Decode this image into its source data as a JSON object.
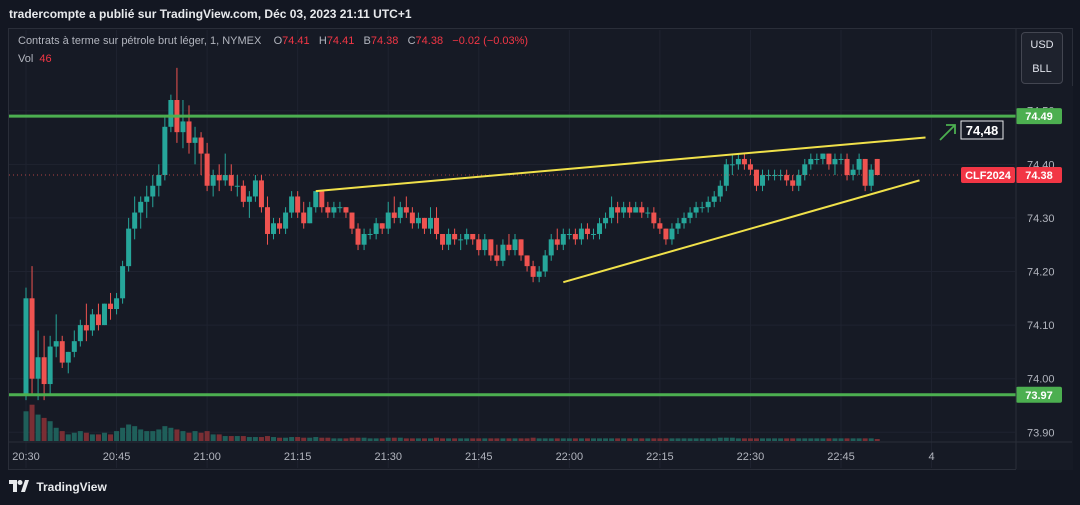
{
  "header": {
    "publisher": "tradercompte a publié sur TradingView.com, Déc 03, 2023 21:11 UTC+1"
  },
  "legend": {
    "symbol": "Contrats à terme sur pétrole brut léger, 1, NYMEX",
    "o_label": "O",
    "o_value": "74.41",
    "h_label": "H",
    "h_value": "74.41",
    "b_label": "B",
    "b_value": "74.38",
    "c_label": "C",
    "c_value": "74.38",
    "change": "−0.02 (−0.03%)",
    "vol_label": "Vol",
    "vol_value": "46"
  },
  "currency": {
    "usd": "USD",
    "unit": "BLL"
  },
  "footer": {
    "brand": "TradingView"
  },
  "colors": {
    "up": "#26a69a",
    "down": "#ef5350",
    "hline": "#4caf50",
    "trend": "#f0e14a",
    "bg": "#161a25"
  },
  "chart_data": {
    "type": "candlestick",
    "x_ticks": [
      "20:30",
      "20:45",
      "21:00",
      "21:15",
      "21:30",
      "21:45",
      "22:00",
      "22:15",
      "22:30",
      "22:45",
      "4"
    ],
    "y_ticks": [
      "73.90",
      "74.00",
      "74.10",
      "74.20",
      "74.30",
      "74.40",
      "74.50"
    ],
    "ylim": [
      73.88,
      74.52
    ],
    "horizontal_levels": [
      {
        "price": 74.49,
        "label": "74.49"
      },
      {
        "price": 73.97,
        "label": "73.97"
      }
    ],
    "current_price": {
      "price": 74.38,
      "label": "74.38",
      "ticker": "CLF2024"
    },
    "annotation": "74,48",
    "trendlines": [
      {
        "from": {
          "time": "21:18",
          "price": 74.35
        },
        "to": {
          "time": "22:59",
          "price": 74.45
        }
      },
      {
        "from": {
          "time": "21:59",
          "price": 74.18
        },
        "to": {
          "time": "22:58",
          "price": 74.37
        }
      }
    ],
    "candles": [
      [
        73.97,
        74.17,
        73.96,
        74.15,
        90
      ],
      [
        74.15,
        74.21,
        73.97,
        74.0,
        110
      ],
      [
        74.0,
        74.09,
        73.96,
        74.04,
        80
      ],
      [
        74.04,
        74.08,
        73.96,
        73.99,
        70
      ],
      [
        73.99,
        74.08,
        73.97,
        74.06,
        60
      ],
      [
        74.06,
        74.12,
        74.04,
        74.07,
        40
      ],
      [
        74.07,
        74.08,
        74.02,
        74.03,
        30
      ],
      [
        74.03,
        74.05,
        74.01,
        74.05,
        20
      ],
      [
        74.05,
        74.09,
        74.04,
        74.07,
        25
      ],
      [
        74.07,
        74.11,
        74.06,
        74.1,
        30
      ],
      [
        74.1,
        74.14,
        74.07,
        74.09,
        25
      ],
      [
        74.09,
        74.13,
        74.08,
        74.12,
        20
      ],
      [
        74.12,
        74.14,
        74.09,
        74.1,
        20
      ],
      [
        74.1,
        74.14,
        74.1,
        74.14,
        25
      ],
      [
        74.14,
        74.16,
        74.11,
        74.13,
        20
      ],
      [
        74.13,
        74.16,
        74.12,
        74.15,
        30
      ],
      [
        74.15,
        74.22,
        74.14,
        74.21,
        40
      ],
      [
        74.21,
        74.3,
        74.2,
        74.28,
        50
      ],
      [
        74.28,
        74.34,
        74.26,
        74.31,
        45
      ],
      [
        74.31,
        74.34,
        74.28,
        74.33,
        35
      ],
      [
        74.33,
        74.36,
        74.3,
        74.34,
        30
      ],
      [
        74.34,
        74.38,
        74.32,
        74.36,
        30
      ],
      [
        74.36,
        74.4,
        74.34,
        74.38,
        35
      ],
      [
        74.38,
        74.49,
        74.37,
        74.47,
        45
      ],
      [
        74.47,
        74.53,
        74.46,
        74.52,
        40
      ],
      [
        74.52,
        74.58,
        74.44,
        74.46,
        35
      ],
      [
        74.46,
        74.52,
        74.43,
        74.48,
        30
      ],
      [
        74.48,
        74.51,
        74.42,
        74.44,
        25
      ],
      [
        74.44,
        74.47,
        74.4,
        74.45,
        30
      ],
      [
        74.45,
        74.46,
        74.38,
        74.42,
        25
      ],
      [
        74.42,
        74.44,
        74.35,
        74.36,
        30
      ],
      [
        74.36,
        74.39,
        74.34,
        74.38,
        20
      ],
      [
        74.38,
        74.4,
        74.35,
        74.37,
        20
      ],
      [
        74.37,
        74.42,
        74.36,
        74.38,
        15
      ],
      [
        74.38,
        74.4,
        74.35,
        74.36,
        15
      ],
      [
        74.36,
        74.38,
        74.34,
        74.36,
        15
      ],
      [
        74.36,
        74.37,
        74.32,
        74.33,
        15
      ],
      [
        74.33,
        74.35,
        74.3,
        74.34,
        12
      ],
      [
        74.34,
        74.38,
        74.33,
        74.37,
        12
      ],
      [
        74.37,
        74.38,
        74.31,
        74.32,
        12
      ],
      [
        74.32,
        74.34,
        74.25,
        74.27,
        15
      ],
      [
        74.27,
        74.3,
        74.26,
        74.29,
        12
      ],
      [
        74.29,
        74.3,
        74.27,
        74.28,
        10
      ],
      [
        74.28,
        74.32,
        74.27,
        74.31,
        10
      ],
      [
        74.31,
        74.35,
        74.3,
        74.34,
        12
      ],
      [
        74.34,
        74.35,
        74.3,
        74.31,
        12
      ],
      [
        74.31,
        74.33,
        74.28,
        74.29,
        10
      ],
      [
        74.29,
        74.33,
        74.29,
        74.32,
        10
      ],
      [
        74.32,
        74.35,
        74.31,
        74.35,
        12
      ],
      [
        74.35,
        74.35,
        74.31,
        74.32,
        10
      ],
      [
        74.32,
        74.33,
        74.3,
        74.31,
        10
      ],
      [
        74.31,
        74.33,
        74.3,
        74.32,
        8
      ],
      [
        74.32,
        74.33,
        74.31,
        74.32,
        8
      ],
      [
        74.32,
        74.32,
        74.3,
        74.31,
        8
      ],
      [
        74.31,
        74.31,
        74.27,
        74.28,
        10
      ],
      [
        74.28,
        74.29,
        74.24,
        74.25,
        10
      ],
      [
        74.25,
        74.28,
        74.24,
        74.27,
        10
      ],
      [
        74.27,
        74.28,
        74.26,
        74.27,
        8
      ],
      [
        74.27,
        74.3,
        74.26,
        74.29,
        8
      ],
      [
        74.29,
        74.29,
        74.27,
        74.28,
        8
      ],
      [
        74.28,
        74.33,
        74.27,
        74.31,
        10
      ],
      [
        74.31,
        74.34,
        74.29,
        74.3,
        10
      ],
      [
        74.3,
        74.33,
        74.29,
        74.32,
        10
      ],
      [
        74.32,
        74.34,
        74.3,
        74.31,
        8
      ],
      [
        74.31,
        74.32,
        74.28,
        74.29,
        8
      ],
      [
        74.29,
        74.31,
        74.28,
        74.3,
        8
      ],
      [
        74.3,
        74.3,
        74.27,
        74.28,
        8
      ],
      [
        74.28,
        74.32,
        74.27,
        74.3,
        8
      ],
      [
        74.3,
        74.32,
        74.26,
        74.27,
        10
      ],
      [
        74.27,
        74.27,
        74.24,
        74.25,
        8
      ],
      [
        74.25,
        74.28,
        74.24,
        74.27,
        8
      ],
      [
        74.27,
        74.28,
        74.25,
        74.26,
        8
      ],
      [
        74.26,
        74.27,
        74.24,
        74.26,
        8
      ],
      [
        74.26,
        74.28,
        74.25,
        74.27,
        8
      ],
      [
        74.27,
        74.27,
        74.25,
        74.26,
        8
      ],
      [
        74.26,
        74.27,
        74.23,
        74.24,
        8
      ],
      [
        74.24,
        74.27,
        74.23,
        74.26,
        8
      ],
      [
        74.26,
        74.26,
        74.22,
        74.23,
        8
      ],
      [
        74.23,
        74.25,
        74.21,
        74.22,
        8
      ],
      [
        74.22,
        74.26,
        74.21,
        74.25,
        8
      ],
      [
        74.25,
        74.27,
        74.23,
        74.24,
        8
      ],
      [
        74.24,
        74.27,
        74.23,
        74.26,
        8
      ],
      [
        74.26,
        74.26,
        74.22,
        74.23,
        8
      ],
      [
        74.23,
        74.23,
        74.2,
        74.21,
        8
      ],
      [
        74.21,
        74.22,
        74.18,
        74.19,
        10
      ],
      [
        74.19,
        74.21,
        74.18,
        74.2,
        8
      ],
      [
        74.2,
        74.24,
        74.19,
        74.23,
        8
      ],
      [
        74.23,
        74.27,
        74.22,
        74.26,
        8
      ],
      [
        74.26,
        74.28,
        74.24,
        74.25,
        8
      ],
      [
        74.25,
        74.28,
        74.24,
        74.27,
        8
      ],
      [
        74.27,
        74.28,
        74.26,
        74.27,
        8
      ],
      [
        74.27,
        74.28,
        74.25,
        74.26,
        8
      ],
      [
        74.26,
        74.29,
        74.25,
        74.28,
        8
      ],
      [
        74.28,
        74.29,
        74.26,
        74.27,
        8
      ],
      [
        74.27,
        74.28,
        74.26,
        74.27,
        8
      ],
      [
        74.27,
        74.3,
        74.26,
        74.29,
        8
      ],
      [
        74.29,
        74.31,
        74.28,
        74.3,
        8
      ],
      [
        74.3,
        74.34,
        74.29,
        74.32,
        8
      ],
      [
        74.32,
        74.33,
        74.29,
        74.31,
        8
      ],
      [
        74.31,
        74.33,
        74.3,
        74.32,
        8
      ],
      [
        74.32,
        74.33,
        74.3,
        74.31,
        8
      ],
      [
        74.31,
        74.33,
        74.31,
        74.32,
        8
      ],
      [
        74.32,
        74.33,
        74.3,
        74.31,
        8
      ],
      [
        74.31,
        74.32,
        74.3,
        74.31,
        8
      ],
      [
        74.31,
        74.32,
        74.28,
        74.29,
        8
      ],
      [
        74.29,
        74.3,
        74.27,
        74.28,
        8
      ],
      [
        74.28,
        74.28,
        74.25,
        74.26,
        8
      ],
      [
        74.26,
        74.29,
        74.25,
        74.28,
        8
      ],
      [
        74.28,
        74.3,
        74.27,
        74.29,
        8
      ],
      [
        74.29,
        74.31,
        74.28,
        74.3,
        8
      ],
      [
        74.3,
        74.32,
        74.29,
        74.31,
        8
      ],
      [
        74.31,
        74.33,
        74.3,
        74.32,
        8
      ],
      [
        74.32,
        74.33,
        74.31,
        74.32,
        8
      ],
      [
        74.32,
        74.34,
        74.31,
        74.33,
        8
      ],
      [
        74.33,
        74.35,
        74.32,
        74.34,
        8
      ],
      [
        74.34,
        74.37,
        74.33,
        74.36,
        10
      ],
      [
        74.36,
        74.41,
        74.35,
        74.4,
        10
      ],
      [
        74.4,
        74.42,
        74.38,
        74.4,
        10
      ],
      [
        74.4,
        74.42,
        74.39,
        74.41,
        8
      ],
      [
        74.41,
        74.42,
        74.39,
        74.4,
        8
      ],
      [
        74.4,
        74.41,
        74.38,
        74.39,
        8
      ],
      [
        74.39,
        74.39,
        74.35,
        74.36,
        8
      ],
      [
        74.36,
        74.39,
        74.35,
        74.38,
        8
      ],
      [
        74.38,
        74.39,
        74.37,
        74.38,
        8
      ],
      [
        74.38,
        74.39,
        74.37,
        74.38,
        8
      ],
      [
        74.38,
        74.39,
        74.37,
        74.38,
        8
      ],
      [
        74.38,
        74.39,
        74.36,
        74.37,
        8
      ],
      [
        74.37,
        74.38,
        74.35,
        74.36,
        8
      ],
      [
        74.36,
        74.39,
        74.35,
        74.38,
        8
      ],
      [
        74.38,
        74.41,
        74.37,
        74.4,
        8
      ],
      [
        74.4,
        74.42,
        74.39,
        74.41,
        8
      ],
      [
        74.41,
        74.42,
        74.4,
        74.41,
        8
      ],
      [
        74.41,
        74.42,
        74.4,
        74.42,
        8
      ],
      [
        74.42,
        74.42,
        74.39,
        74.4,
        8
      ],
      [
        74.4,
        74.42,
        74.38,
        74.41,
        8
      ],
      [
        74.41,
        74.42,
        74.4,
        74.41,
        8
      ],
      [
        74.41,
        74.42,
        74.37,
        74.38,
        8
      ],
      [
        74.38,
        74.4,
        74.37,
        74.39,
        8
      ],
      [
        74.39,
        74.42,
        74.38,
        74.41,
        8
      ],
      [
        74.41,
        74.41,
        74.35,
        74.36,
        8
      ],
      [
        74.36,
        74.4,
        74.35,
        74.39,
        8
      ],
      [
        74.41,
        74.41,
        74.38,
        74.38,
        6
      ]
    ]
  }
}
